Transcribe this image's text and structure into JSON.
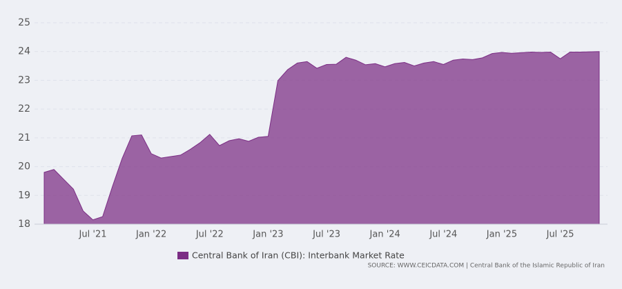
{
  "chart_data": {
    "type": "area",
    "categories": [
      null,
      null,
      null,
      null,
      null,
      "Jul '21",
      null,
      null,
      null,
      null,
      null,
      "Jan '22",
      null,
      null,
      null,
      null,
      null,
      "Jul '22",
      null,
      null,
      null,
      null,
      null,
      "Jan '23",
      null,
      null,
      null,
      null,
      null,
      "Jul '23",
      null,
      null,
      null,
      null,
      null,
      "Jan '24",
      null,
      null,
      null,
      null,
      null,
      "Jul '24",
      null,
      null,
      null,
      null,
      null,
      "Jan '25",
      null,
      null,
      null,
      null,
      null,
      "Jul '25",
      null,
      null,
      null,
      null
    ],
    "series": [
      {
        "name": "Central Bank of Iran (CBI): Interbank Market Rate",
        "color": "#7b2d84",
        "values": [
          19.8,
          19.9,
          19.56,
          19.22,
          18.46,
          18.15,
          18.26,
          19.3,
          20.28,
          21.07,
          21.1,
          20.45,
          20.3,
          20.35,
          20.4,
          20.6,
          20.83,
          21.12,
          20.73,
          20.9,
          20.97,
          20.88,
          21.02,
          21.05,
          22.99,
          23.37,
          23.6,
          23.65,
          23.42,
          23.55,
          23.56,
          23.8,
          23.7,
          23.54,
          23.58,
          23.47,
          23.58,
          23.62,
          23.5,
          23.6,
          23.65,
          23.55,
          23.7,
          23.74,
          23.72,
          23.78,
          23.93,
          23.97,
          23.94,
          23.96,
          23.98,
          23.97,
          23.98,
          23.75,
          23.98,
          23.98,
          23.99,
          24.0
        ]
      }
    ],
    "ylim": [
      18,
      25
    ],
    "yticks": [
      18,
      19,
      20,
      21,
      22,
      23,
      24,
      25
    ],
    "grid": true,
    "source": "SOURCE: WWW.CEICDATA.COM | Central Bank of the Islamic Republic of Iran"
  }
}
